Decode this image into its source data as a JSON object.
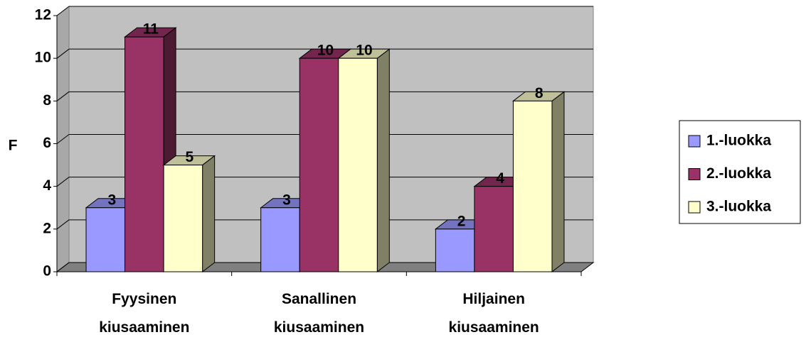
{
  "chart_data": {
    "type": "bar3d",
    "y_axis_label": "F",
    "categories": [
      "Fyysinen kiusaaminen",
      "Sanallinen kiusaaminen",
      "Hiljainen kiusaaminen"
    ],
    "series": [
      {
        "name": "1.-luokka",
        "color": "#9999ff",
        "values": [
          3,
          3,
          2
        ]
      },
      {
        "name": "2.-luokka",
        "color": "#993366",
        "values": [
          11,
          10,
          4
        ]
      },
      {
        "name": "3.-luokka",
        "color": "#ffffcc",
        "values": [
          5,
          10,
          8
        ]
      }
    ],
    "ylim": [
      0,
      12
    ],
    "yticks": [
      0,
      2,
      4,
      6,
      8,
      10,
      12
    ],
    "grid": true,
    "legend": "right"
  }
}
